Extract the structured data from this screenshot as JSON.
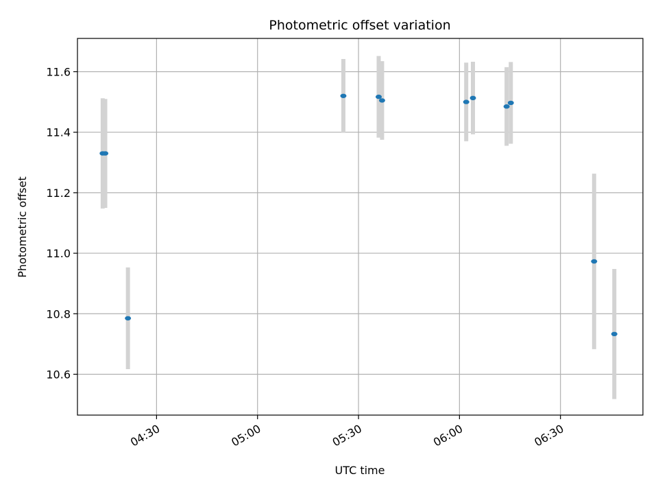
{
  "chart_data": {
    "type": "scatter",
    "title": "Photometric offset variation",
    "xlabel": "UTC time",
    "ylabel": "Photometric offset",
    "x_ticks": [
      "04:30",
      "05:00",
      "05:30",
      "06:00",
      "06:30"
    ],
    "y_ticks": [
      "10.6",
      "10.8",
      "11.0",
      "11.2",
      "11.4",
      "11.6"
    ],
    "xlim": [
      "04:06:30",
      "06:54:30"
    ],
    "ylim": [
      10.465,
      11.71
    ],
    "grid": true,
    "marker_color": "#1f77b4",
    "errorbar_color": "#d3d3d3",
    "points": [
      {
        "x": "04:14:00",
        "y": 11.33,
        "err": 0.182
      },
      {
        "x": "04:14:45",
        "y": 11.33,
        "err": 0.18
      },
      {
        "x": "04:21:30",
        "y": 10.785,
        "err": 0.168
      },
      {
        "x": "05:25:30",
        "y": 11.52,
        "err": 0.122
      },
      {
        "x": "05:36:00",
        "y": 11.517,
        "err": 0.135
      },
      {
        "x": "05:37:00",
        "y": 11.505,
        "err": 0.13
      },
      {
        "x": "06:02:00",
        "y": 11.5,
        "err": 0.13
      },
      {
        "x": "06:04:00",
        "y": 11.513,
        "err": 0.12
      },
      {
        "x": "06:14:00",
        "y": 11.485,
        "err": 0.13
      },
      {
        "x": "06:15:15",
        "y": 11.497,
        "err": 0.135
      },
      {
        "x": "06:40:00",
        "y": 10.973,
        "err": 0.29
      },
      {
        "x": "06:46:00",
        "y": 10.733,
        "err": 0.215
      }
    ]
  }
}
